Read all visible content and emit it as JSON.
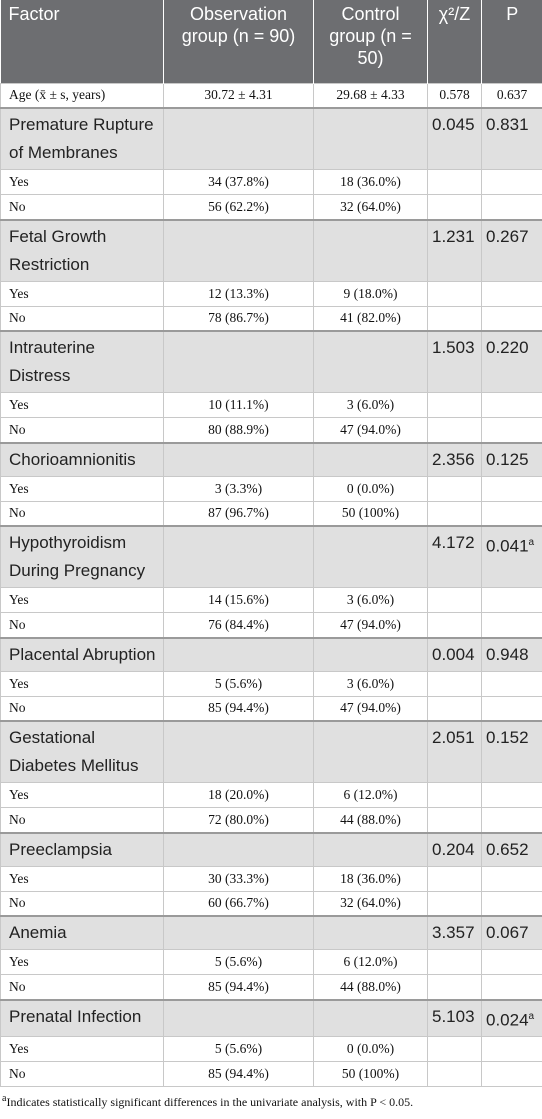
{
  "table": {
    "columns": [
      "Factor",
      "Observation group (n = 90)",
      "Control group (n = 50)",
      "χ²/Z",
      "P"
    ],
    "age": {
      "factor": "Age (x̄ ± s, years)",
      "obs": "30.72 ± 4.31",
      "ctrl": "29.68 ± 4.33",
      "stat": "0.578",
      "p": "0.637"
    },
    "groups": [
      {
        "factor": "Premature Rupture of Membranes",
        "stat": "0.045",
        "p": "0.831",
        "levels": [
          {
            "label": "Yes",
            "obs": "34 (37.8%)",
            "ctrl": "18 (36.0%)"
          },
          {
            "label": "No",
            "obs": "56 (62.2%)",
            "ctrl": "32 (64.0%)"
          }
        ]
      },
      {
        "factor": "Fetal Growth Restriction",
        "stat": "1.231",
        "p": "0.267",
        "levels": [
          {
            "label": "Yes",
            "obs": "12 (13.3%)",
            "ctrl": "9 (18.0%)"
          },
          {
            "label": "No",
            "obs": "78 (86.7%)",
            "ctrl": "41 (82.0%)"
          }
        ]
      },
      {
        "factor": "Intrauterine Distress",
        "stat": "1.503",
        "p": "0.220",
        "levels": [
          {
            "label": "Yes",
            "obs": "10 (11.1%)",
            "ctrl": "3 (6.0%)"
          },
          {
            "label": "No",
            "obs": "80 (88.9%)",
            "ctrl": "47 (94.0%)"
          }
        ]
      },
      {
        "factor": "Chorioamnionitis",
        "stat": "2.356",
        "p": "0.125",
        "levels": [
          {
            "label": "Yes",
            "obs": "3 (3.3%)",
            "ctrl": "0 (0.0%)"
          },
          {
            "label": "No",
            "obs": "87 (96.7%)",
            "ctrl": "50 (100%)"
          }
        ]
      },
      {
        "factor": "Hypothyroidism During Pregnancy",
        "stat": "4.172",
        "p": "0.041",
        "p_note": "a",
        "levels": [
          {
            "label": "Yes",
            "obs": "14 (15.6%)",
            "ctrl": "3 (6.0%)"
          },
          {
            "label": "No",
            "obs": "76 (84.4%)",
            "ctrl": "47 (94.0%)"
          }
        ]
      },
      {
        "factor": "Placental Abruption",
        "stat": "0.004",
        "p": "0.948",
        "levels": [
          {
            "label": "Yes",
            "obs": "5 (5.6%)",
            "ctrl": "3 (6.0%)"
          },
          {
            "label": "No",
            "obs": "85 (94.4%)",
            "ctrl": "47 (94.0%)"
          }
        ]
      },
      {
        "factor": "Gestational Diabetes Mellitus",
        "stat": "2.051",
        "p": "0.152",
        "levels": [
          {
            "label": "Yes",
            "obs": "18 (20.0%)",
            "ctrl": "6 (12.0%)"
          },
          {
            "label": "No",
            "obs": "72 (80.0%)",
            "ctrl": "44 (88.0%)"
          }
        ]
      },
      {
        "factor": "Preeclampsia",
        "stat": "0.204",
        "p": "0.652",
        "levels": [
          {
            "label": "Yes",
            "obs": "30 (33.3%)",
            "ctrl": "18 (36.0%)"
          },
          {
            "label": "No",
            "obs": "60 (66.7%)",
            "ctrl": "32 (64.0%)"
          }
        ]
      },
      {
        "factor": "Anemia",
        "stat": "3.357",
        "p": "0.067",
        "levels": [
          {
            "label": "Yes",
            "obs": "5 (5.6%)",
            "ctrl": "6 (12.0%)"
          },
          {
            "label": "No",
            "obs": "85 (94.4%)",
            "ctrl": "44 (88.0%)"
          }
        ]
      },
      {
        "factor": "Prenatal Infection",
        "stat": "5.103",
        "p": "0.024",
        "p_note": "a",
        "levels": [
          {
            "label": "Yes",
            "obs": "5 (5.6%)",
            "ctrl": "0 (0.0%)"
          },
          {
            "label": "No",
            "obs": "85 (94.4%)",
            "ctrl": "50 (100%)"
          }
        ]
      }
    ]
  },
  "footnote": {
    "mark": "a",
    "text": "Indicates statistically significant differences in the univariate analysis, with P < 0.05."
  }
}
